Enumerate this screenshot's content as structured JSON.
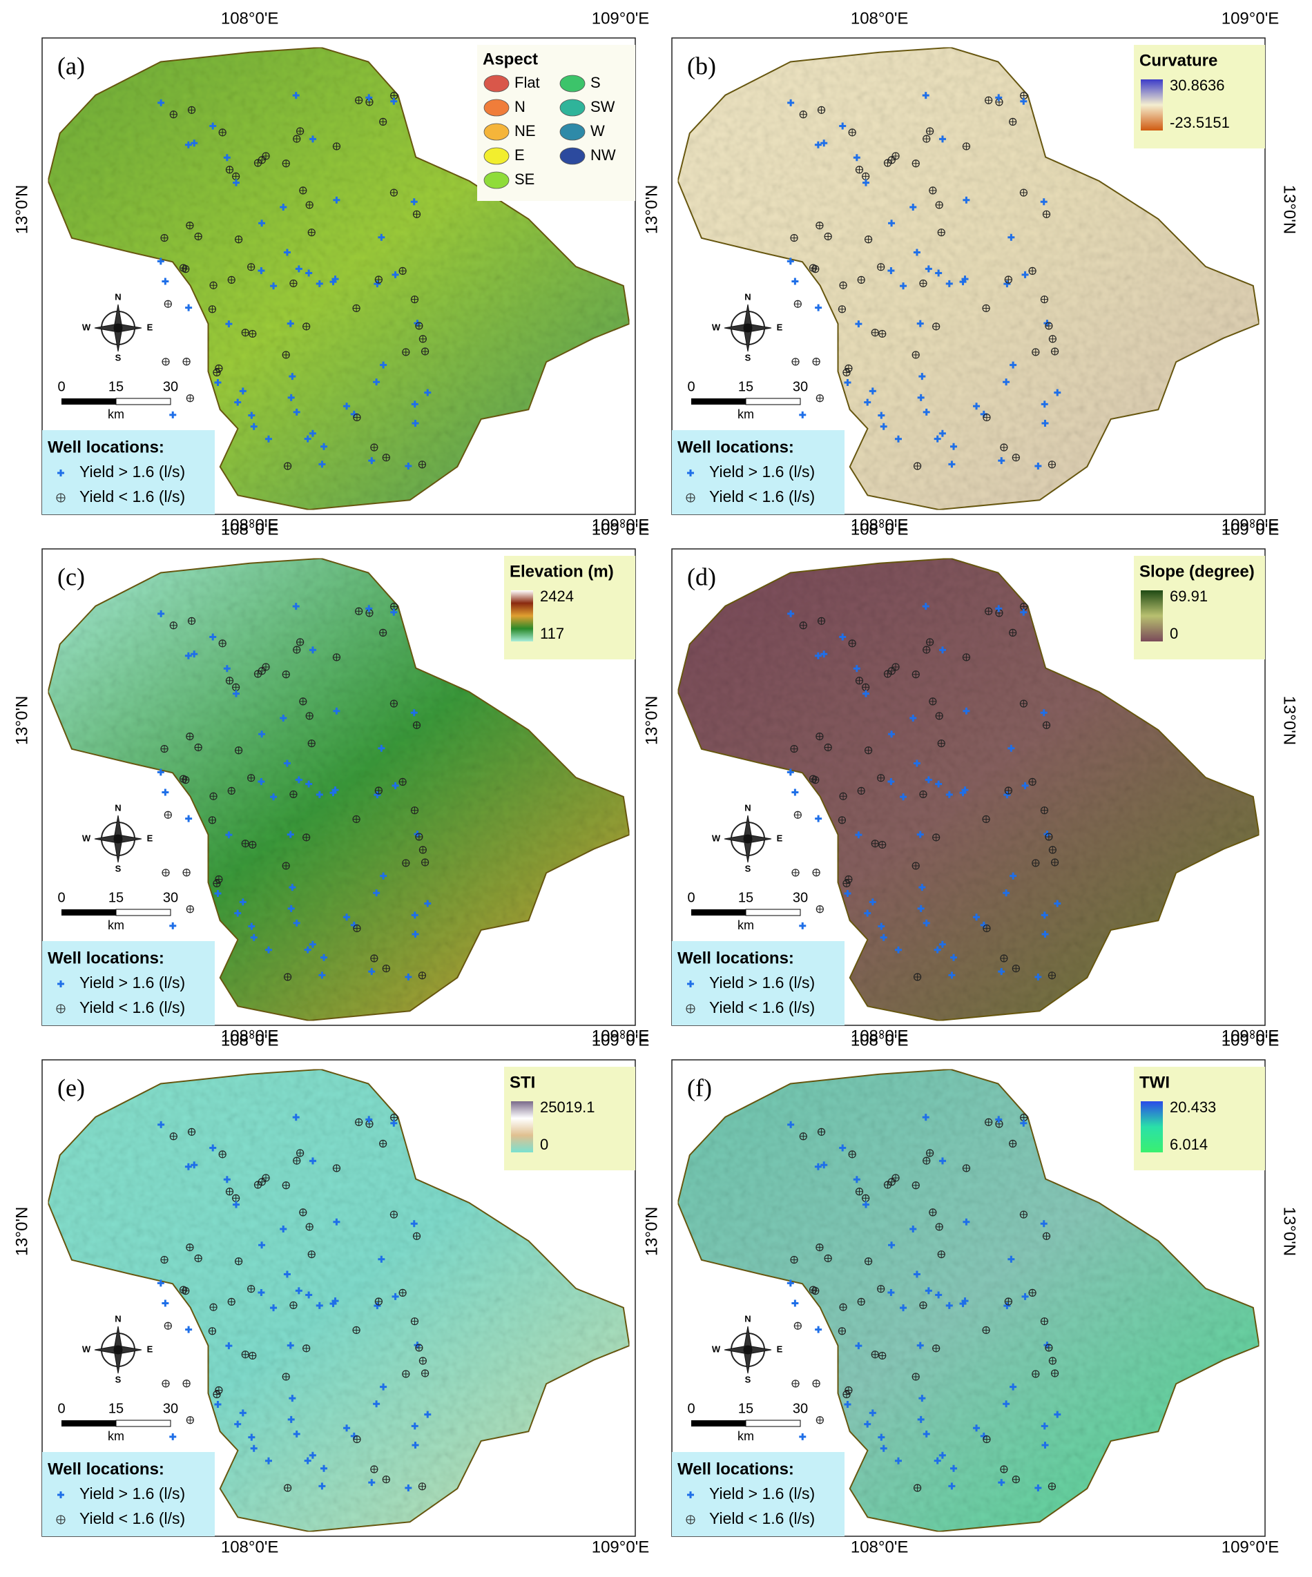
{
  "axes": {
    "lon_labels": [
      "108°0'E",
      "109°0'E"
    ],
    "lat_label": "13°0'N"
  },
  "compass": [
    "N",
    "E",
    "S",
    "W"
  ],
  "scale_bar": {
    "ticks": [
      "0",
      "15",
      "30"
    ],
    "unit": "km"
  },
  "well_legend": {
    "title": "Well locations:",
    "items": [
      "Yield > 1.6 (l/s)",
      "Yield < 1.6 (l/s)"
    ]
  },
  "panels": [
    {
      "label": "(a)",
      "legend_title": "Aspect",
      "legend_items": [
        {
          "label": "Flat",
          "color": "#d9574a"
        },
        {
          "label": "N",
          "color": "#f07d3a"
        },
        {
          "label": "NE",
          "color": "#f5b53a"
        },
        {
          "label": "E",
          "color": "#f2ee2e"
        },
        {
          "label": "SE",
          "color": "#8fdc3a"
        },
        {
          "label": "S",
          "color": "#3cc46a"
        },
        {
          "label": "SW",
          "color": "#2fb49a"
        },
        {
          "label": "W",
          "color": "#2e8aa8"
        },
        {
          "label": "NW",
          "color": "#2c4a9e"
        }
      ]
    },
    {
      "label": "(b)",
      "legend_title": "Curvature",
      "legend_max": "30.8636",
      "legend_min": "-23.5151",
      "colors": [
        "#3c3cc8",
        "#f4eed0",
        "#d05a10"
      ]
    },
    {
      "label": "(c)",
      "legend_title": "Elevation (m)",
      "legend_max": "2424",
      "legend_min": "117",
      "colors": [
        "#ffffff",
        "#8a2a10",
        "#e0a030",
        "#2a8a2a",
        "#a8ecd8"
      ]
    },
    {
      "label": "(d)",
      "legend_title": "Slope (degree)",
      "legend_max": "69.91",
      "legend_min": "0",
      "colors": [
        "#1f4a14",
        "#b8c070",
        "#7a4a5a"
      ]
    },
    {
      "label": "(e)",
      "legend_title": "STI",
      "legend_max": "25019.1",
      "legend_min": "0",
      "colors": [
        "#7a6a8a",
        "#ffffff",
        "#e0c090",
        "#7ae0d0"
      ]
    },
    {
      "label": "(f)",
      "legend_title": "TWI",
      "legend_max": "20.433",
      "legend_min": "6.014",
      "colors": [
        "#2a4ae8",
        "#2ae0a8",
        "#3af070"
      ]
    }
  ]
}
